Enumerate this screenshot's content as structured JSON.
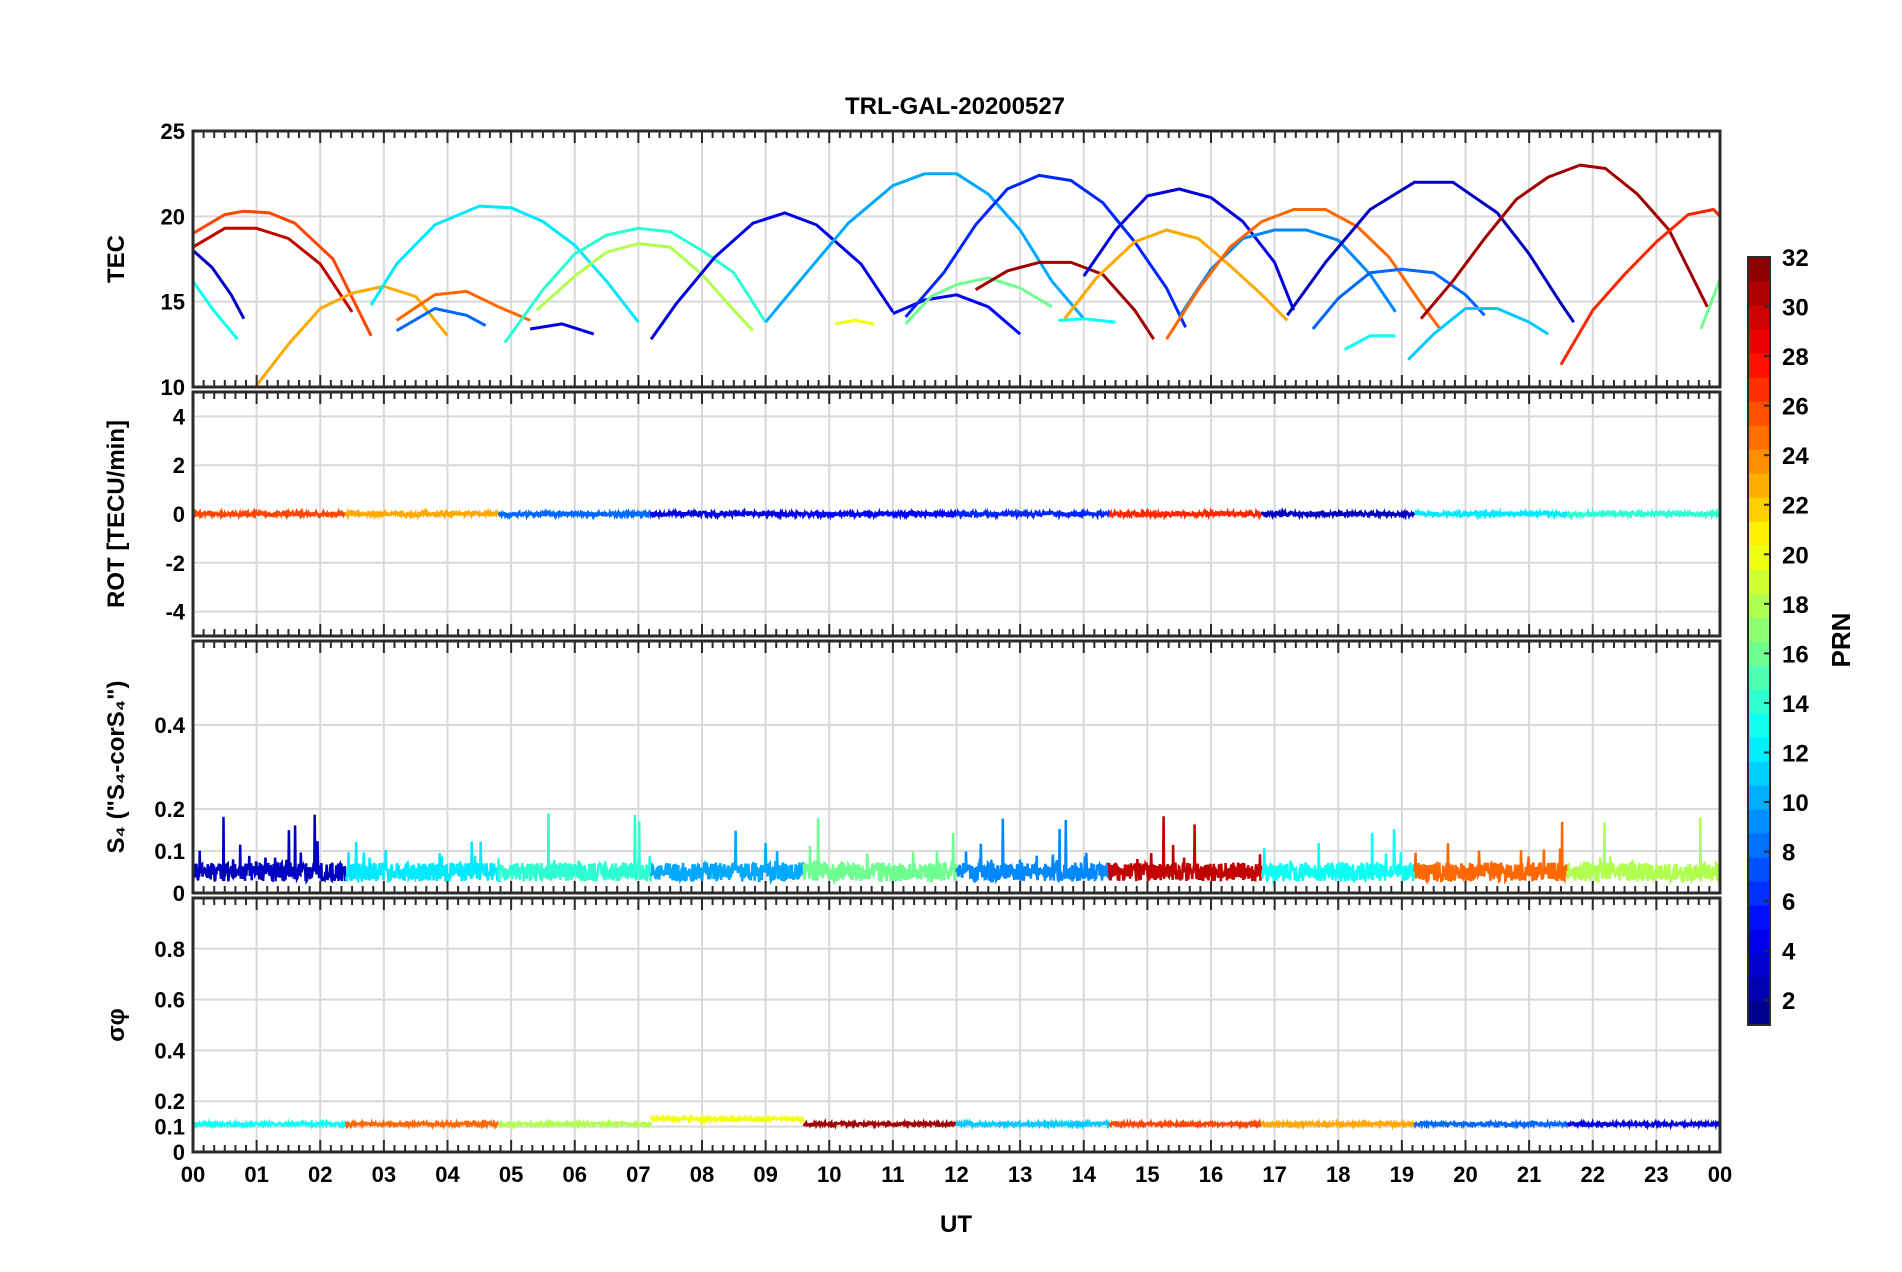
{
  "chart_data": {
    "type": "line",
    "title": "TRL-GAL-20200527",
    "xlabel": "UT",
    "xlim": [
      0,
      24
    ],
    "x_ticks": [
      "00",
      "01",
      "02",
      "03",
      "04",
      "05",
      "06",
      "07",
      "08",
      "09",
      "10",
      "11",
      "12",
      "13",
      "14",
      "15",
      "16",
      "17",
      "18",
      "19",
      "20",
      "21",
      "22",
      "23",
      "00"
    ],
    "grid": true,
    "colorbar": {
      "label": "PRN",
      "range": [
        1,
        32
      ],
      "ticks": [
        "2",
        "4",
        "6",
        "8",
        "10",
        "12",
        "14",
        "16",
        "18",
        "20",
        "22",
        "24",
        "26",
        "28",
        "30",
        "32"
      ],
      "colormap": "jet"
    },
    "panels": [
      {
        "name": "tec",
        "ylabel": "TEC",
        "ylim": [
          10,
          25
        ],
        "y_ticks": [
          10,
          15,
          20,
          25
        ],
        "series": [
          {
            "prn": 30,
            "points": [
              [
                0.0,
                18.2
              ],
              [
                0.5,
                19.3
              ],
              [
                1.0,
                19.3
              ],
              [
                1.5,
                18.7
              ],
              [
                2.0,
                17.2
              ],
              [
                2.5,
                14.4
              ]
            ]
          },
          {
            "prn": 26,
            "points": [
              [
                0.0,
                19.0
              ],
              [
                0.5,
                20.1
              ],
              [
                0.8,
                20.3
              ],
              [
                1.2,
                20.2
              ],
              [
                1.6,
                19.6
              ],
              [
                2.2,
                17.5
              ],
              [
                2.8,
                13.0
              ]
            ]
          },
          {
            "prn": 3,
            "points": [
              [
                0.0,
                18.0
              ],
              [
                0.3,
                17.0
              ],
              [
                0.6,
                15.4
              ],
              [
                0.8,
                14.0
              ]
            ]
          },
          {
            "prn": 13,
            "points": [
              [
                0.0,
                16.2
              ],
              [
                0.3,
                14.6
              ],
              [
                0.7,
                12.8
              ]
            ]
          },
          {
            "prn": 23,
            "points": [
              [
                1.0,
                10.1
              ],
              [
                1.5,
                12.5
              ],
              [
                2.0,
                14.6
              ],
              [
                2.5,
                15.5
              ],
              [
                3.0,
                15.9
              ],
              [
                3.5,
                15.3
              ],
              [
                4.0,
                13.0
              ]
            ]
          },
          {
            "prn": 12,
            "points": [
              [
                2.8,
                14.8
              ],
              [
                3.2,
                17.2
              ],
              [
                3.8,
                19.5
              ],
              [
                4.5,
                20.6
              ],
              [
                5.0,
                20.5
              ],
              [
                5.5,
                19.7
              ],
              [
                6.0,
                18.3
              ],
              [
                6.5,
                16.2
              ],
              [
                7.0,
                13.8
              ]
            ]
          },
          {
            "prn": 25,
            "points": [
              [
                3.2,
                13.9
              ],
              [
                3.8,
                15.4
              ],
              [
                4.3,
                15.6
              ],
              [
                4.8,
                14.7
              ],
              [
                5.3,
                13.9
              ]
            ]
          },
          {
            "prn": 8,
            "points": [
              [
                3.2,
                13.3
              ],
              [
                3.8,
                14.6
              ],
              [
                4.3,
                14.2
              ],
              [
                4.6,
                13.6
              ]
            ]
          },
          {
            "prn": 14,
            "points": [
              [
                4.9,
                12.6
              ],
              [
                5.5,
                15.7
              ],
              [
                6.0,
                17.8
              ],
              [
                6.5,
                18.9
              ],
              [
                7.0,
                19.3
              ],
              [
                7.5,
                19.1
              ],
              [
                8.0,
                18.0
              ],
              [
                8.5,
                16.7
              ],
              [
                9.0,
                13.8
              ]
            ]
          },
          {
            "prn": 18,
            "points": [
              [
                5.4,
                14.5
              ],
              [
                6.0,
                16.5
              ],
              [
                6.5,
                17.9
              ],
              [
                7.0,
                18.4
              ],
              [
                7.5,
                18.2
              ],
              [
                8.0,
                16.6
              ],
              [
                8.5,
                14.5
              ],
              [
                8.8,
                13.3
              ]
            ]
          },
          {
            "prn": 4,
            "points": [
              [
                5.3,
                13.4
              ],
              [
                5.8,
                13.7
              ],
              [
                6.3,
                13.1
              ]
            ]
          },
          {
            "prn": 4,
            "points": [
              [
                7.2,
                12.8
              ],
              [
                7.6,
                14.9
              ],
              [
                8.2,
                17.6
              ],
              [
                8.8,
                19.6
              ],
              [
                9.3,
                20.2
              ],
              [
                9.8,
                19.5
              ],
              [
                10.5,
                17.2
              ],
              [
                11.0,
                14.4
              ]
            ]
          },
          {
            "prn": 10,
            "points": [
              [
                9.0,
                13.8
              ],
              [
                9.6,
                16.5
              ],
              [
                10.3,
                19.6
              ],
              [
                11.0,
                21.8
              ],
              [
                11.5,
                22.5
              ],
              [
                12.0,
                22.5
              ],
              [
                12.5,
                21.3
              ],
              [
                13.0,
                19.2
              ],
              [
                13.5,
                16.2
              ],
              [
                14.0,
                14.0
              ]
            ]
          },
          {
            "prn": 20,
            "points": [
              [
                10.1,
                13.7
              ],
              [
                10.4,
                13.9
              ],
              [
                10.7,
                13.7
              ]
            ]
          },
          {
            "prn": 5,
            "points": [
              [
                11.0,
                14.3
              ],
              [
                11.5,
                15.1
              ],
              [
                12.0,
                15.4
              ],
              [
                12.5,
                14.7
              ],
              [
                13.0,
                13.1
              ]
            ]
          },
          {
            "prn": 16,
            "points": [
              [
                11.2,
                13.7
              ],
              [
                11.6,
                15.3
              ],
              [
                12.0,
                16.0
              ],
              [
                12.5,
                16.4
              ],
              [
                13.0,
                15.8
              ],
              [
                13.5,
                14.7
              ]
            ]
          },
          {
            "prn": 31,
            "points": [
              [
                12.3,
                15.7
              ],
              [
                12.8,
                16.8
              ],
              [
                13.3,
                17.3
              ],
              [
                13.8,
                17.3
              ],
              [
                14.3,
                16.6
              ],
              [
                14.8,
                14.5
              ],
              [
                15.1,
                12.8
              ]
            ]
          },
          {
            "prn": 6,
            "points": [
              [
                11.2,
                14.1
              ],
              [
                11.8,
                16.7
              ],
              [
                12.3,
                19.5
              ],
              [
                12.8,
                21.6
              ],
              [
                13.3,
                22.4
              ],
              [
                13.8,
                22.1
              ],
              [
                14.3,
                20.8
              ],
              [
                14.8,
                18.5
              ],
              [
                15.3,
                15.8
              ],
              [
                15.6,
                13.5
              ]
            ]
          },
          {
            "prn": 13,
            "points": [
              [
                13.6,
                13.9
              ],
              [
                14.0,
                14.0
              ],
              [
                14.5,
                13.8
              ]
            ]
          },
          {
            "prn": 23,
            "points": [
              [
                13.7,
                14.0
              ],
              [
                14.2,
                16.4
              ],
              [
                14.8,
                18.5
              ],
              [
                15.3,
                19.2
              ],
              [
                15.8,
                18.7
              ],
              [
                16.3,
                17.1
              ],
              [
                16.8,
                15.4
              ],
              [
                17.2,
                13.9
              ]
            ]
          },
          {
            "prn": 4,
            "points": [
              [
                14.0,
                16.5
              ],
              [
                14.5,
                19.2
              ],
              [
                15.0,
                21.2
              ],
              [
                15.5,
                21.6
              ],
              [
                16.0,
                21.1
              ],
              [
                16.5,
                19.7
              ],
              [
                17.0,
                17.3
              ],
              [
                17.3,
                14.5
              ]
            ]
          },
          {
            "prn": 9,
            "points": [
              [
                15.5,
                14.1
              ],
              [
                16.0,
                16.9
              ],
              [
                16.5,
                18.7
              ],
              [
                17.0,
                19.2
              ],
              [
                17.5,
                19.2
              ],
              [
                18.0,
                18.6
              ],
              [
                18.5,
                16.6
              ],
              [
                18.9,
                14.4
              ]
            ]
          },
          {
            "prn": 25,
            "points": [
              [
                15.3,
                12.8
              ],
              [
                15.8,
                15.7
              ],
              [
                16.3,
                18.2
              ],
              [
                16.8,
                19.7
              ],
              [
                17.3,
                20.4
              ],
              [
                17.8,
                20.4
              ],
              [
                18.3,
                19.4
              ],
              [
                18.8,
                17.6
              ],
              [
                19.3,
                14.9
              ],
              [
                19.6,
                13.4
              ]
            ]
          },
          {
            "prn": 8,
            "points": [
              [
                17.6,
                13.4
              ],
              [
                18.0,
                15.2
              ],
              [
                18.5,
                16.7
              ],
              [
                19.0,
                16.9
              ],
              [
                19.5,
                16.7
              ],
              [
                20.0,
                15.4
              ],
              [
                20.3,
                14.2
              ]
            ]
          },
          {
            "prn": 13,
            "points": [
              [
                18.1,
                12.2
              ],
              [
                18.5,
                13.0
              ],
              [
                18.9,
                13.0
              ]
            ]
          },
          {
            "prn": 11,
            "points": [
              [
                19.1,
                11.6
              ],
              [
                19.5,
                13.1
              ],
              [
                20.0,
                14.6
              ],
              [
                20.5,
                14.6
              ],
              [
                21.0,
                13.8
              ],
              [
                21.3,
                13.1
              ]
            ]
          },
          {
            "prn": 3,
            "points": [
              [
                17.2,
                14.2
              ],
              [
                17.8,
                17.3
              ],
              [
                18.5,
                20.4
              ],
              [
                19.2,
                22.0
              ],
              [
                19.8,
                22.0
              ],
              [
                20.5,
                20.2
              ],
              [
                21.0,
                17.8
              ],
              [
                21.5,
                14.9
              ],
              [
                21.7,
                13.8
              ]
            ]
          },
          {
            "prn": 31,
            "points": [
              [
                19.3,
                14.0
              ],
              [
                19.8,
                16.2
              ],
              [
                20.3,
                18.7
              ],
              [
                20.8,
                21.0
              ],
              [
                21.3,
                22.3
              ],
              [
                21.8,
                23.0
              ],
              [
                22.2,
                22.8
              ],
              [
                22.7,
                21.3
              ],
              [
                23.2,
                19.2
              ],
              [
                23.8,
                14.7
              ]
            ]
          },
          {
            "prn": 27,
            "points": [
              [
                21.5,
                11.3
              ],
              [
                22.0,
                14.5
              ],
              [
                22.5,
                16.6
              ],
              [
                23.0,
                18.5
              ],
              [
                23.5,
                20.1
              ],
              [
                23.9,
                20.4
              ],
              [
                24.0,
                20.0
              ]
            ]
          },
          {
            "prn": 16,
            "points": [
              [
                23.7,
                13.4
              ],
              [
                24.0,
                16.3
              ]
            ]
          }
        ]
      },
      {
        "name": "rot",
        "ylabel": "ROT [TECU/min]",
        "ylim": [
          -5,
          5
        ],
        "y_ticks": [
          -4,
          -2,
          0,
          2,
          4
        ],
        "series": [
          {
            "x_range": [
              0,
              24
            ],
            "value": 0.0
          }
        ]
      },
      {
        "name": "s4",
        "ylabel": "S₄ (\"S₄-corS₄\")",
        "ylim": [
          0,
          0.6
        ],
        "y_ticks": [
          0,
          0.1,
          0.2,
          0.4
        ],
        "series": [
          {
            "x_range": [
              0,
              24
            ],
            "baseline": 0.05,
            "peak_max": 0.19
          }
        ]
      },
      {
        "name": "sigma_phi",
        "ylabel": "σφ",
        "ylim": [
          0,
          1
        ],
        "y_ticks": [
          0,
          0.1,
          0.2,
          0.4,
          0.6,
          0.8
        ],
        "series": [
          {
            "x_range": [
              0,
              24
            ],
            "value": 0.11,
            "max": 0.15
          }
        ]
      }
    ]
  }
}
